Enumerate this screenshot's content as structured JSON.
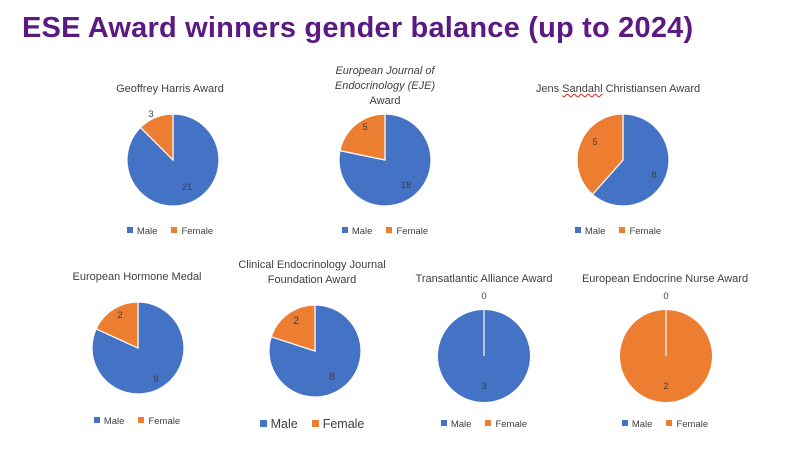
{
  "page": {
    "title": "ESE Award winners gender balance (up to 2024)"
  },
  "colors": {
    "male": "#4472c4",
    "female": "#ed7d31",
    "title": "#5b1a82",
    "text": "#404040"
  },
  "chart_data": [
    {
      "type": "pie",
      "title": [
        "Geoffrey Harris Award"
      ],
      "title_italic": [
        false
      ],
      "categories": [
        "Male",
        "Female"
      ],
      "values": [
        21,
        3
      ],
      "labels": [
        "21",
        "3"
      ],
      "legend": "bottom"
    },
    {
      "type": "pie",
      "title": [
        "European Journal of Endocrinology (EJE)",
        "Award"
      ],
      "title_italic": [
        true,
        false
      ],
      "categories": [
        "Male",
        "Female"
      ],
      "values": [
        18,
        5
      ],
      "labels": [
        "18",
        "5"
      ],
      "legend": "bottom"
    },
    {
      "type": "pie",
      "title": [
        "Jens Sandahl Christiansen Award"
      ],
      "title_italic": [
        false
      ],
      "categories": [
        "Male",
        "Female"
      ],
      "values": [
        8,
        5
      ],
      "labels": [
        "8",
        "5"
      ],
      "legend": "bottom"
    },
    {
      "type": "pie",
      "title": [
        "European Hormone Medal"
      ],
      "title_italic": [
        false
      ],
      "categories": [
        "Male",
        "Female"
      ],
      "values": [
        9,
        2
      ],
      "labels": [
        "9",
        "2"
      ],
      "legend": "bottom"
    },
    {
      "type": "pie",
      "title": [
        "Clinical Endocrinology Journal",
        "Foundation Award"
      ],
      "title_italic": [
        false,
        false
      ],
      "categories": [
        "Male",
        "Female"
      ],
      "values": [
        8,
        2
      ],
      "labels": [
        "8",
        "2"
      ],
      "legend": "bottom"
    },
    {
      "type": "pie",
      "title": [
        "Transatlantic Alliance Award"
      ],
      "title_italic": [
        false
      ],
      "categories": [
        "Male",
        "Female"
      ],
      "values": [
        3,
        0
      ],
      "labels": [
        "3",
        "0"
      ],
      "legend": "bottom"
    },
    {
      "type": "pie",
      "title": [
        "European Endocrine Nurse Award"
      ],
      "title_italic": [
        false
      ],
      "categories": [
        "Male",
        "Female"
      ],
      "values": [
        0,
        2
      ],
      "labels": [
        "0",
        "2"
      ],
      "legend": "bottom"
    }
  ]
}
